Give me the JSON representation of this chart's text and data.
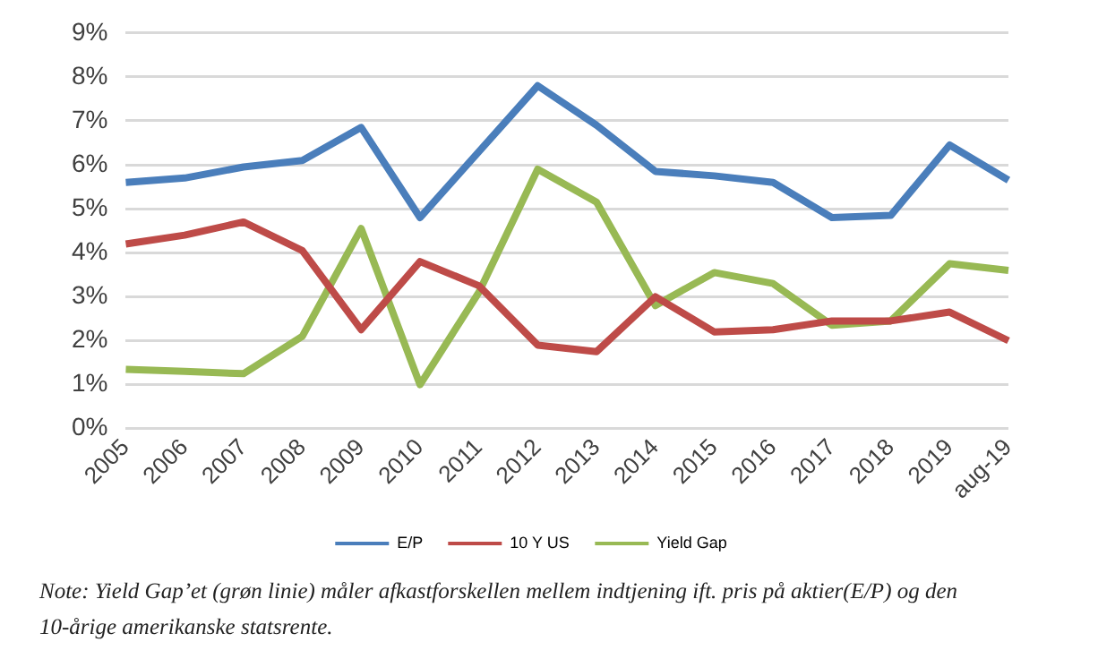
{
  "chart_data": {
    "type": "line",
    "categories": [
      "2005",
      "2006",
      "2007",
      "2008",
      "2009",
      "2010",
      "2011",
      "2012",
      "2013",
      "2014",
      "2015",
      "2016",
      "2017",
      "2018",
      "2019",
      "aug-19"
    ],
    "series": [
      {
        "name": "E/P",
        "color": "#4a7ebb",
        "values": [
          5.6,
          5.7,
          5.95,
          6.1,
          6.85,
          4.8,
          6.3,
          7.8,
          6.9,
          5.85,
          5.75,
          5.6,
          4.8,
          4.85,
          6.45,
          5.65
        ]
      },
      {
        "name": "10 Y US",
        "color": "#be4b48",
        "values": [
          4.2,
          4.4,
          4.7,
          4.05,
          2.25,
          3.8,
          3.25,
          1.9,
          1.75,
          3.0,
          2.2,
          2.25,
          2.45,
          2.45,
          2.65,
          2.0
        ]
      },
      {
        "name": "Yield Gap",
        "color": "#98b954",
        "values": [
          1.35,
          1.3,
          1.25,
          2.1,
          4.55,
          1.0,
          3.1,
          5.9,
          5.15,
          2.8,
          3.55,
          3.3,
          2.35,
          2.45,
          3.75,
          3.6
        ]
      }
    ],
    "ylim": [
      0,
      9
    ],
    "yticks": [
      {
        "value": 0,
        "label": "0%"
      },
      {
        "value": 1,
        "label": "1%"
      },
      {
        "value": 2,
        "label": "2%"
      },
      {
        "value": 3,
        "label": "3%"
      },
      {
        "value": 4,
        "label": "4%"
      },
      {
        "value": 5,
        "label": "5%"
      },
      {
        "value": 6,
        "label": "6%"
      },
      {
        "value": 7,
        "label": "7%"
      },
      {
        "value": 8,
        "label": "8%"
      },
      {
        "value": 9,
        "label": "9%"
      }
    ],
    "grid": "y",
    "legend": "bottom",
    "marker": "none",
    "line_style": "solid",
    "annotations": [
      "Note: Yield Gap’et (grøn linie) måler afkastforskellen mellem indtjening ift. pris på aktier(E/P) og den 10-årige amerikanske statsrente."
    ]
  }
}
